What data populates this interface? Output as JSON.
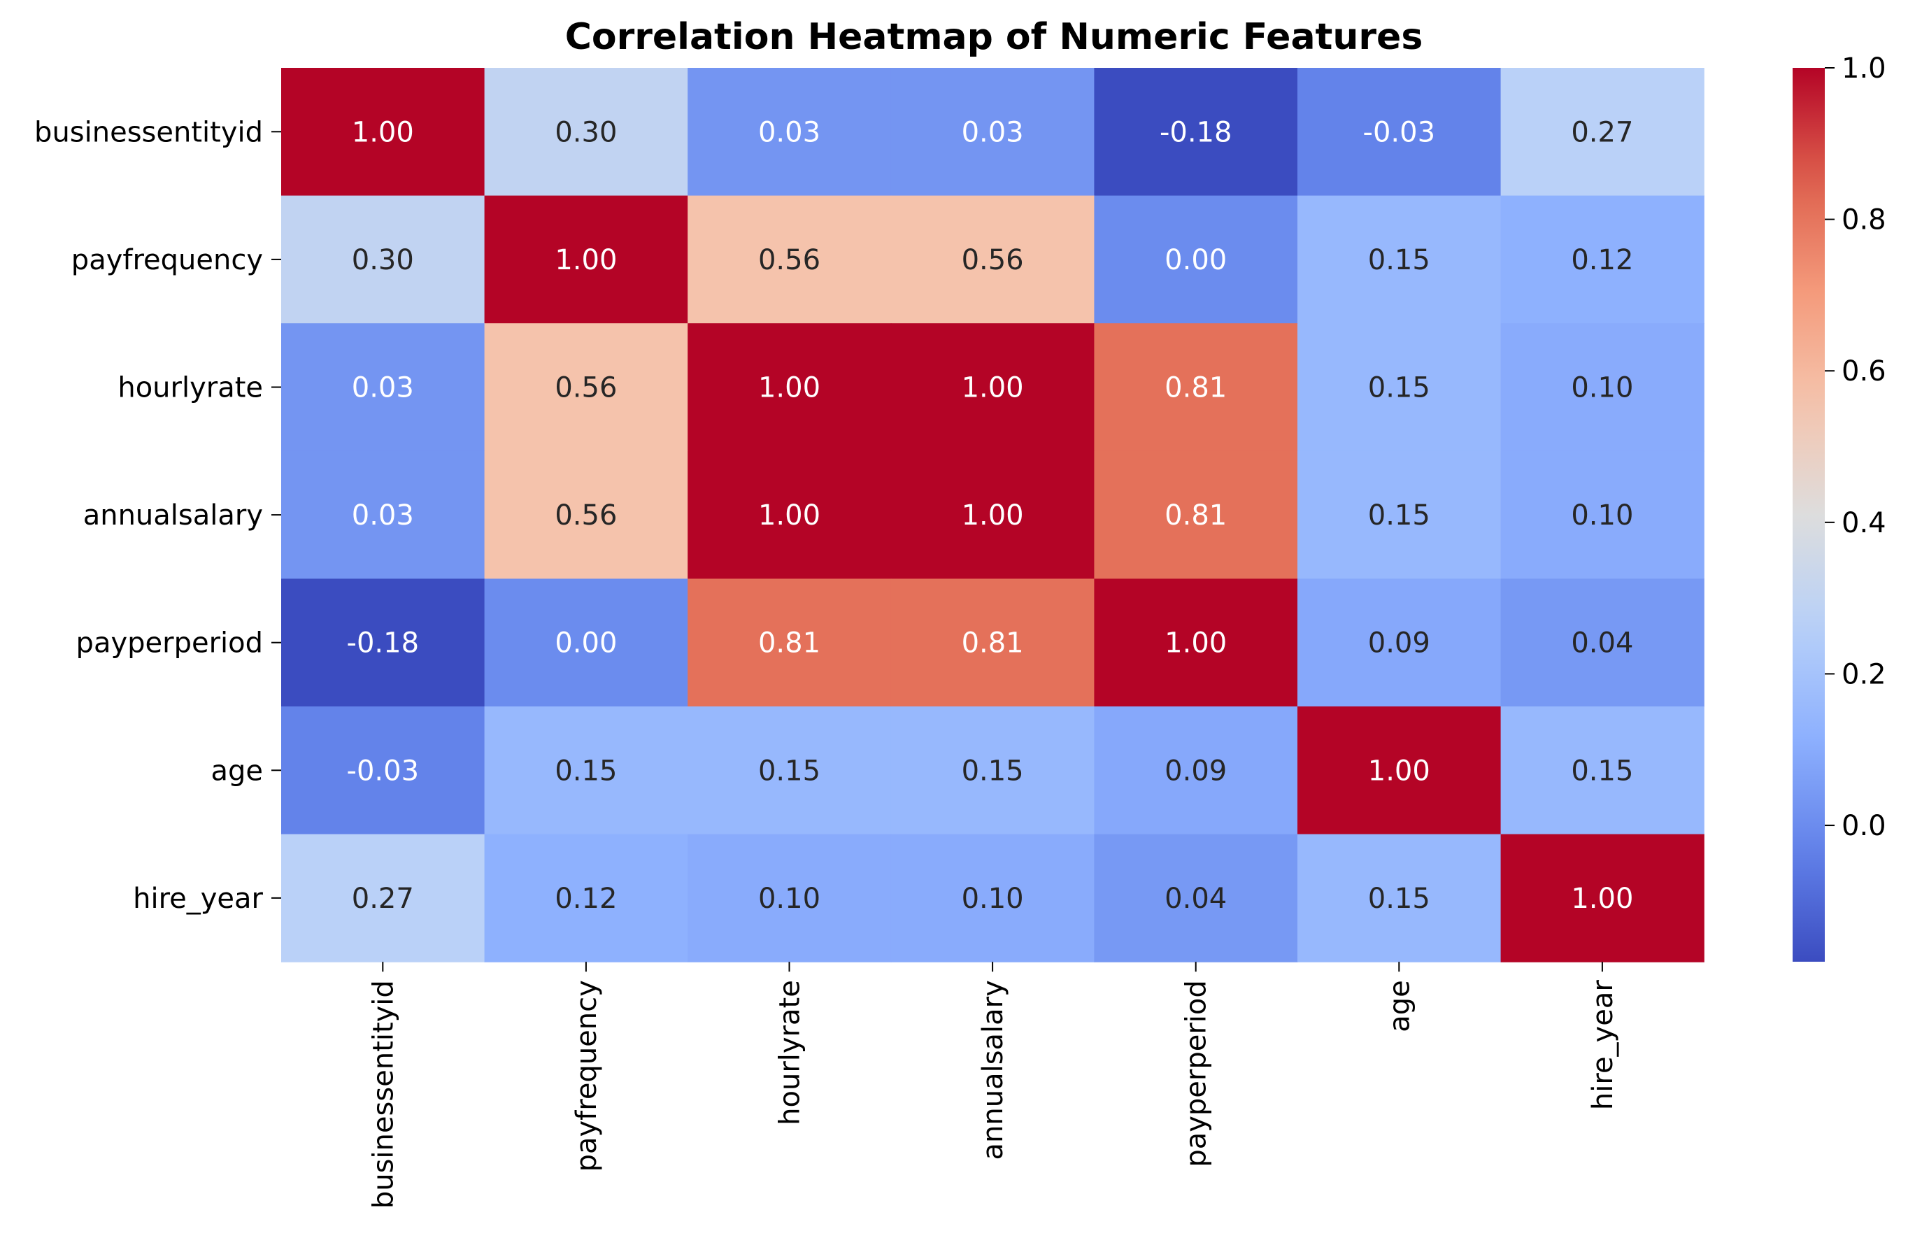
{
  "chart_data": {
    "type": "heatmap",
    "title": "Correlation Heatmap of Numeric Features",
    "xlabel": "",
    "ylabel": "",
    "x_categories": [
      "businessentityid",
      "payfrequency",
      "hourlyrate",
      "annualsalary",
      "payperperiod",
      "age",
      "hire_year"
    ],
    "y_categories": [
      "businessentityid",
      "payfrequency",
      "hourlyrate",
      "annualsalary",
      "payperperiod",
      "age",
      "hire_year"
    ],
    "values": [
      [
        1.0,
        0.3,
        0.03,
        0.03,
        -0.18,
        -0.03,
        0.27
      ],
      [
        0.3,
        1.0,
        0.56,
        0.56,
        -0.0,
        0.15,
        0.12
      ],
      [
        0.03,
        0.56,
        1.0,
        1.0,
        0.81,
        0.15,
        0.1
      ],
      [
        0.03,
        0.56,
        1.0,
        1.0,
        0.81,
        0.15,
        0.1
      ],
      [
        -0.18,
        -0.0,
        0.81,
        0.81,
        1.0,
        0.09,
        0.04
      ],
      [
        -0.03,
        0.15,
        0.15,
        0.15,
        0.09,
        1.0,
        0.15
      ],
      [
        0.27,
        0.12,
        0.1,
        0.1,
        0.04,
        0.15,
        1.0
      ]
    ],
    "value_format": "0.00",
    "colormap": "coolwarm",
    "vmin": -0.18,
    "vmax": 1.0,
    "colorbar": {
      "ticks": [
        0.0,
        0.2,
        0.4,
        0.6,
        0.8,
        1.0
      ],
      "tick_labels": [
        "0.0",
        "0.2",
        "0.4",
        "0.6",
        "0.8",
        "1.0"
      ],
      "low_color": "#3b4cc0",
      "high_color": "#b40426"
    },
    "grid": false,
    "legend": "colorbar-right"
  }
}
